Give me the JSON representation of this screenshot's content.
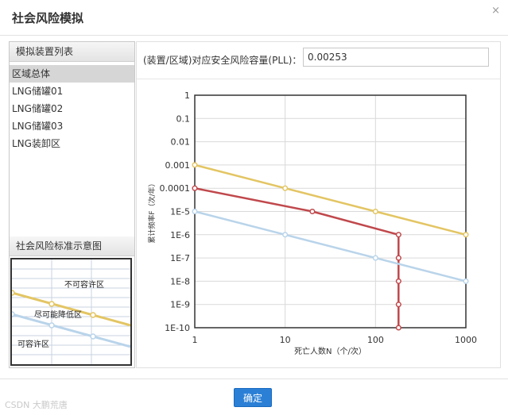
{
  "dialog": {
    "title": "社会风险模拟",
    "close_icon": "×"
  },
  "left": {
    "list_header": "模拟装置列表",
    "items": [
      "区域总体",
      "LNG储罐01",
      "LNG储罐02",
      "LNG储罐03",
      "LNG装卸区"
    ],
    "selected_index": 0,
    "diagram_header": "社会风险标准示意图",
    "diagram_labels": {
      "top": "不可容许区",
      "middle": "尽可能降低区",
      "bottom": "可容许区"
    }
  },
  "param": {
    "label": "(装置/区域)对应安全风险容量(PLL)：",
    "value": "0.00253"
  },
  "footer": {
    "ok_label": "确定",
    "watermark": "CSDN 大鹏荒唐"
  },
  "colors": {
    "upper": "#e3c563",
    "lower": "#b9d4ea",
    "region": "#c0484c",
    "button": "#2b80d6"
  },
  "chart_data": {
    "type": "line",
    "xlabel": "死亡人数N（个/次）",
    "ylabel": "累计频率F（次/年）",
    "x_scale": "log",
    "y_scale": "log",
    "xlim": [
      1,
      1000
    ],
    "ylim": [
      1e-10,
      1
    ],
    "x_ticks": [
      "1",
      "10",
      "100",
      "1000"
    ],
    "y_ticks": [
      "1",
      "0.1",
      "0.01",
      "0.001",
      "0.0001",
      "1E-5",
      "1E-6",
      "1E-7",
      "1E-8",
      "1E-9",
      "1E-10"
    ],
    "series": [
      {
        "color": "#e3c563",
        "points": [
          [
            1,
            0.001
          ],
          [
            10,
            0.0001
          ],
          [
            100,
            1e-05
          ],
          [
            1000,
            1e-06
          ]
        ]
      },
      {
        "color": "#c0484c",
        "points": [
          [
            1,
            0.0001
          ],
          [
            20,
            1e-05
          ],
          [
            180,
            1e-06
          ],
          [
            180,
            1e-07
          ],
          [
            180,
            1e-08
          ],
          [
            180,
            1e-09
          ],
          [
            180,
            1e-10
          ]
        ]
      },
      {
        "color": "#b9d4ea",
        "points": [
          [
            1,
            1e-05
          ],
          [
            10,
            1e-06
          ],
          [
            100,
            1e-07
          ],
          [
            1000,
            1e-08
          ]
        ]
      }
    ]
  }
}
